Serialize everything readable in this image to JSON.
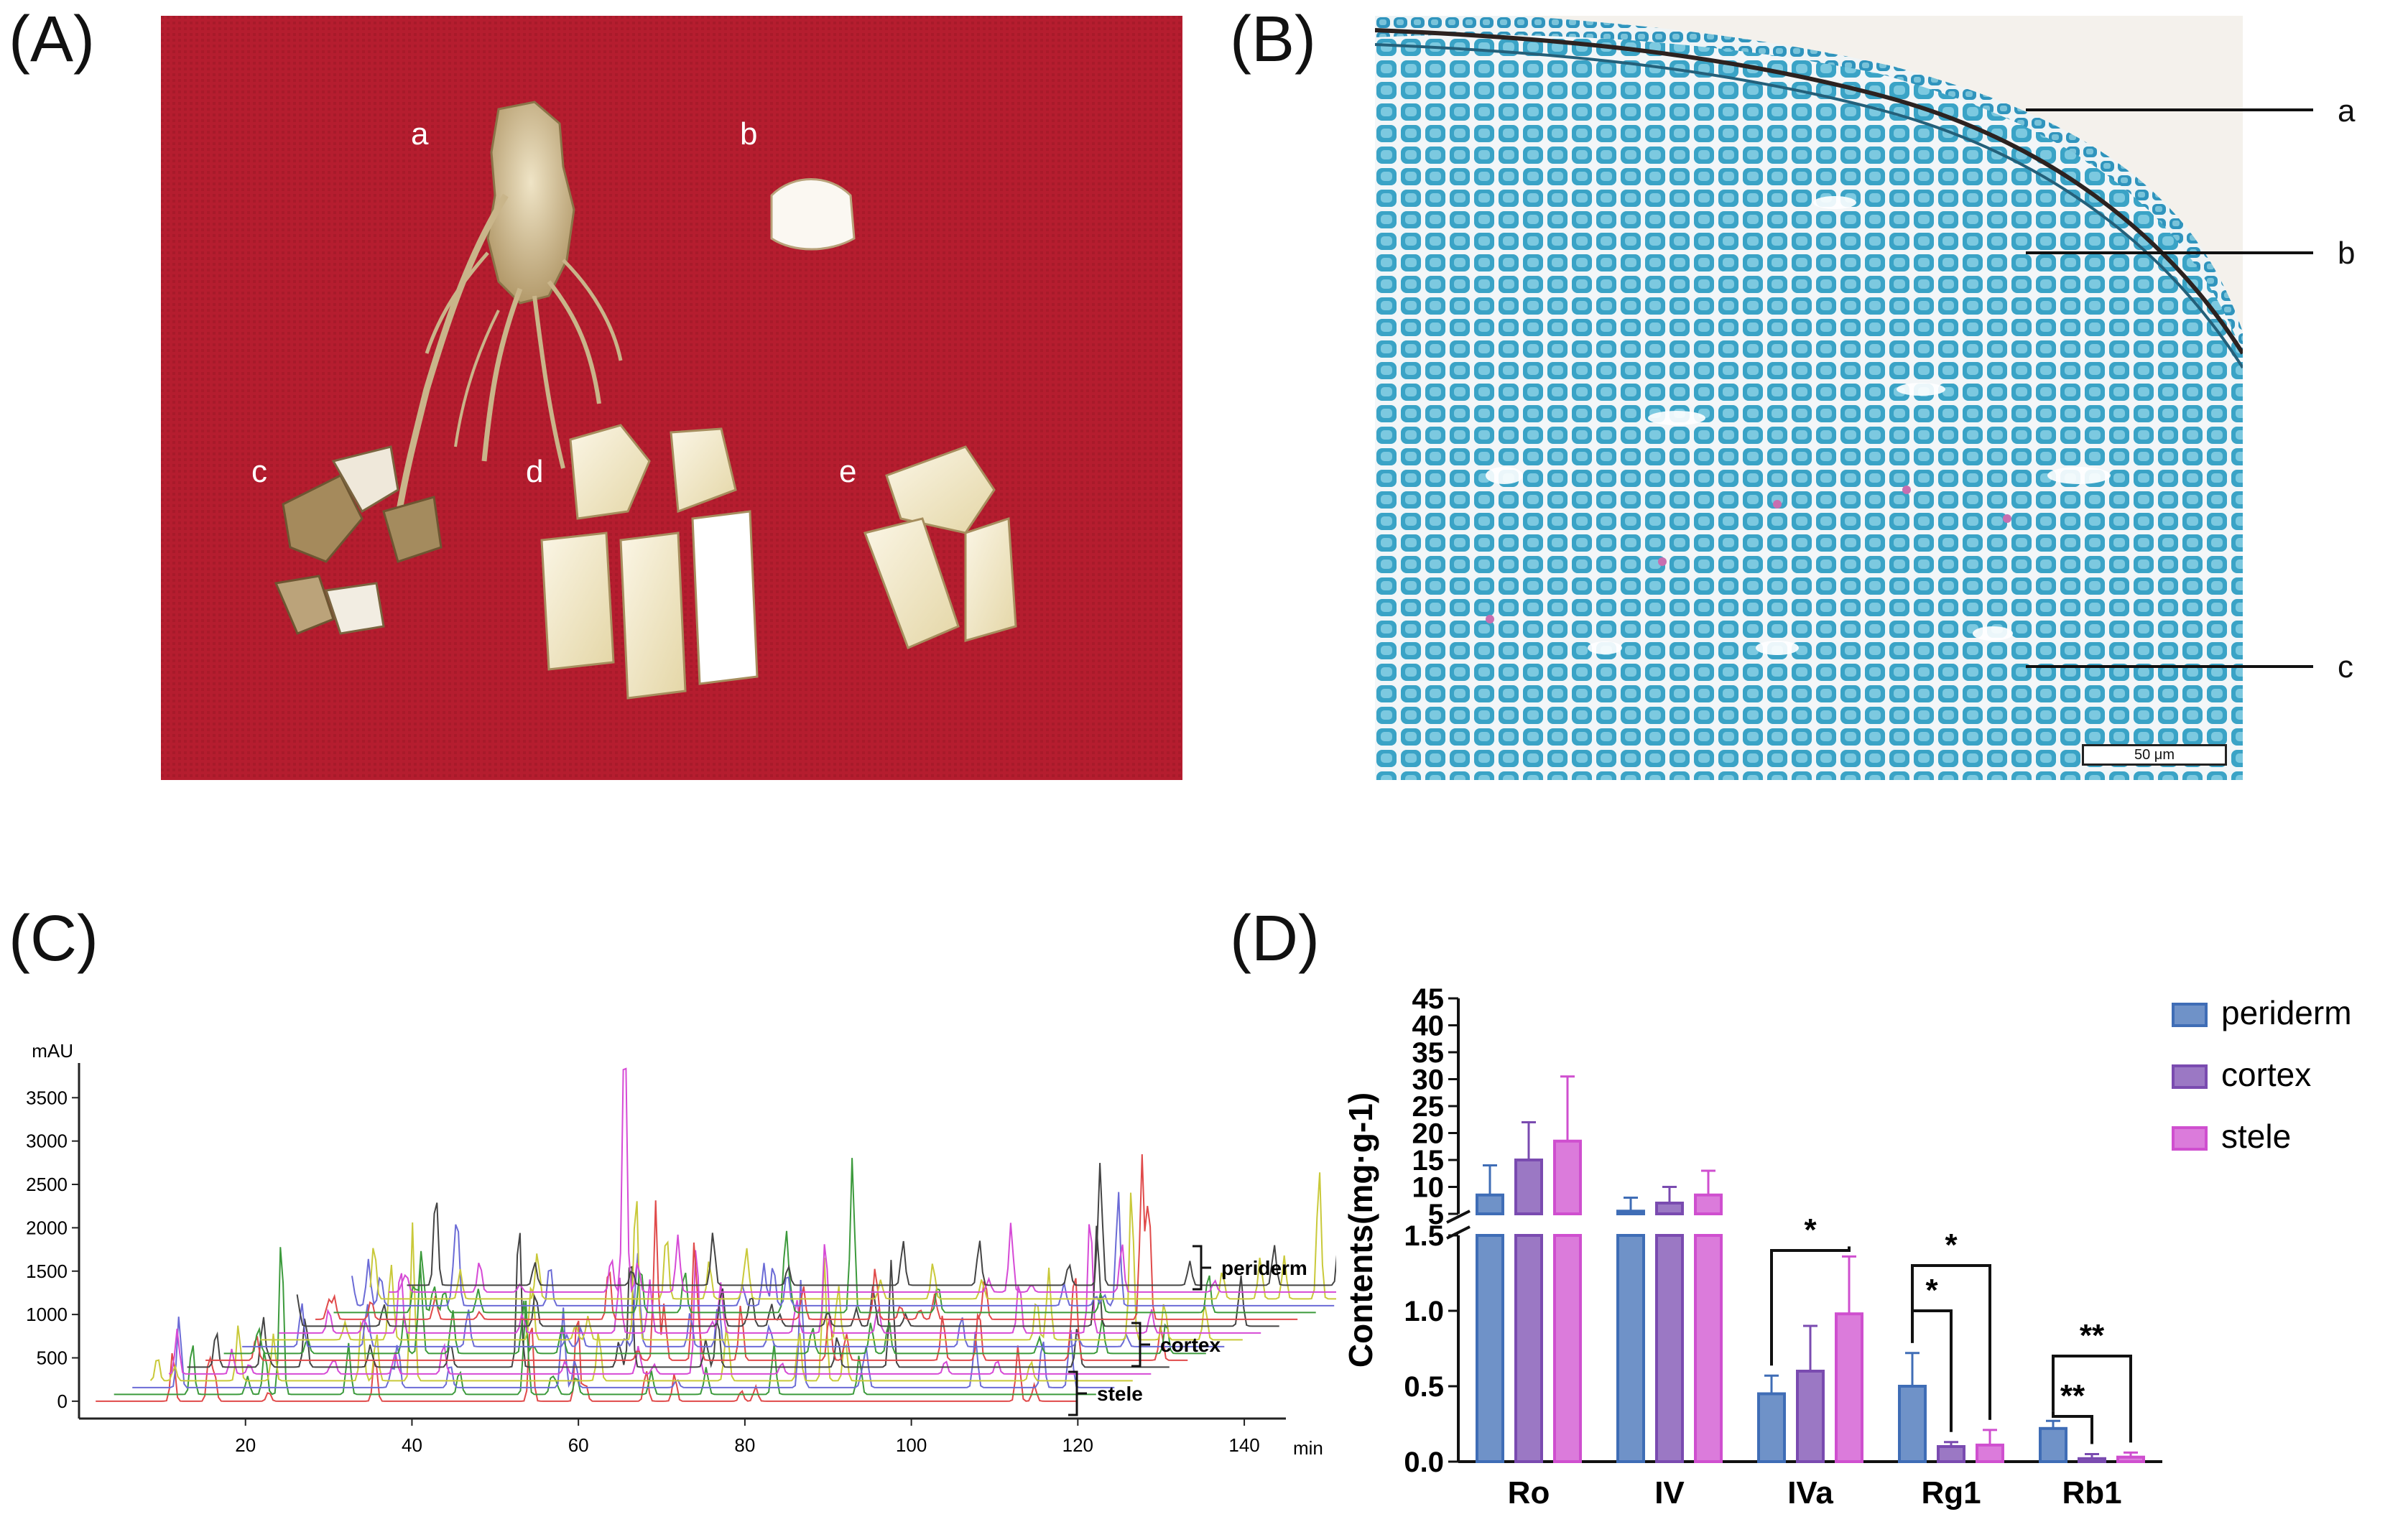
{
  "panels": {
    "A": {
      "label": "(A)",
      "letters": [
        "a",
        "b",
        "c",
        "d",
        "e"
      ]
    },
    "B": {
      "label": "(B)",
      "letters": [
        "a",
        "b",
        "c"
      ],
      "scale_bar": "50 μm"
    },
    "C": {
      "label": "(C)"
    },
    "D": {
      "label": "(D)"
    }
  },
  "colors": {
    "red_bg": "#b51d2f",
    "stain": "#3aa3c6",
    "periderm": "#3f6db6",
    "cortex": "#7a4bb0",
    "stele": "#cf4fcf"
  },
  "chart_data": [
    {
      "type": "line",
      "xlabel": "min",
      "ylabel": "mAU",
      "x_ticks": [
        "20",
        "40",
        "60",
        "80",
        "100",
        "120",
        "140"
      ],
      "y_ticks": [
        "0",
        "500",
        "1000",
        "1500",
        "2000",
        "2500",
        "3000",
        "3500"
      ],
      "xlim": [
        0,
        145
      ],
      "ylim": [
        -200,
        3900
      ],
      "groups": [
        {
          "name": "periderm",
          "traces": 3
        },
        {
          "name": "cortex",
          "traces": 3
        },
        {
          "name": "stele",
          "traces": 3
        }
      ],
      "trace_colors": [
        "#e04a4a",
        "#3c9a3c",
        "#6b6bd6",
        "#c9c93a",
        "#d64ad6",
        "#444444"
      ]
    },
    {
      "type": "bar",
      "ylabel": "Contents(mg·g-1)",
      "categories": [
        "Ro",
        "IV",
        "IVa",
        "Rg1",
        "Rb1"
      ],
      "y_ticks_upper": [
        "5",
        "10",
        "15",
        "20",
        "25",
        "30",
        "35",
        "40",
        "45"
      ],
      "y_ticks_lower": [
        "0.0",
        "0.5",
        "1.0",
        "1.5"
      ],
      "axis_break": [
        1.5,
        5
      ],
      "series": [
        {
          "name": "periderm",
          "values": [
            8.5,
            5.5,
            0.45,
            0.5,
            0.22
          ],
          "errors": [
            5.5,
            2.5,
            0.12,
            0.22,
            0.05
          ]
        },
        {
          "name": "cortex",
          "values": [
            15.0,
            7.0,
            0.6,
            0.1,
            0.02
          ],
          "errors": [
            7.0,
            3.0,
            0.3,
            0.03,
            0.03
          ]
        },
        {
          "name": "stele",
          "values": [
            18.5,
            8.5,
            0.98,
            0.11,
            0.03
          ],
          "errors": [
            12.0,
            4.5,
            0.38,
            0.1,
            0.03
          ]
        }
      ],
      "significance": [
        {
          "category": "IVa",
          "text": "*",
          "pair": [
            "periderm",
            "stele"
          ]
        },
        {
          "category": "Rg1",
          "text": "*",
          "pair": [
            "periderm",
            "cortex"
          ]
        },
        {
          "category": "Rg1",
          "text": "*",
          "pair": [
            "periderm",
            "stele"
          ]
        },
        {
          "category": "Rb1",
          "text": "**",
          "pair": [
            "periderm",
            "cortex"
          ]
        },
        {
          "category": "Rb1",
          "text": "**",
          "pair": [
            "periderm",
            "stele"
          ]
        }
      ]
    }
  ]
}
